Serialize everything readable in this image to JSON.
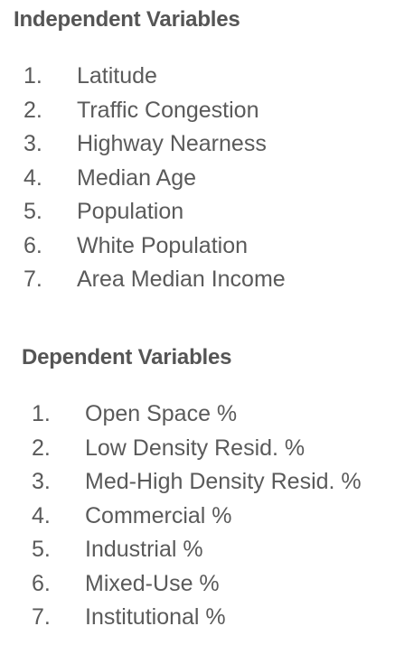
{
  "independent": {
    "title": "Independent Variables",
    "items": [
      {
        "num": "1.",
        "label": "Latitude"
      },
      {
        "num": "2.",
        "label": "Traffic Congestion"
      },
      {
        "num": "3.",
        "label": "Highway Nearness"
      },
      {
        "num": "4.",
        "label": "Median Age"
      },
      {
        "num": "5.",
        "label": "Population"
      },
      {
        "num": "6.",
        "label": "White Population"
      },
      {
        "num": "7.",
        "label": "Area Median Income"
      }
    ]
  },
  "dependent": {
    "title": "Dependent Variables",
    "items": [
      {
        "num": "1.",
        "label": "Open Space %"
      },
      {
        "num": "2.",
        "label": "Low Density Resid. %"
      },
      {
        "num": "3.",
        "label": "Med-High Density Resid. %"
      },
      {
        "num": "4.",
        "label": "Commercial %"
      },
      {
        "num": "5.",
        "label": "Industrial %"
      },
      {
        "num": "6.",
        "label": "Mixed-Use %"
      },
      {
        "num": "7.",
        "label": "Institutional %"
      }
    ]
  }
}
